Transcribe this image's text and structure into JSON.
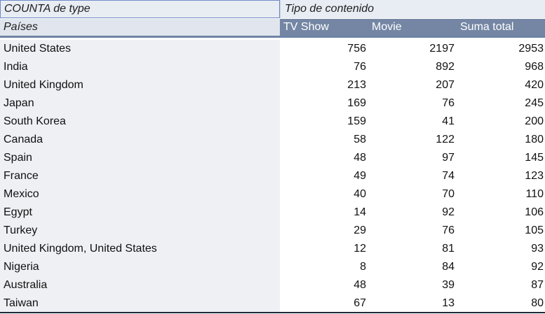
{
  "header": {
    "value_label": "COUNTA de type",
    "column_group_label": "Tipo de contenido",
    "row_label": "Países",
    "columns": [
      "TV Show",
      "Movie",
      "Suma total"
    ]
  },
  "rows": [
    {
      "country": "United States",
      "tv_show": "756",
      "movie": "2197",
      "total": "2953"
    },
    {
      "country": "India",
      "tv_show": "76",
      "movie": "892",
      "total": "968"
    },
    {
      "country": "United Kingdom",
      "tv_show": "213",
      "movie": "207",
      "total": "420"
    },
    {
      "country": "Japan",
      "tv_show": "169",
      "movie": "76",
      "total": "245"
    },
    {
      "country": "South Korea",
      "tv_show": "159",
      "movie": "41",
      "total": "200"
    },
    {
      "country": "Canada",
      "tv_show": "58",
      "movie": "122",
      "total": "180"
    },
    {
      "country": "Spain",
      "tv_show": "48",
      "movie": "97",
      "total": "145"
    },
    {
      "country": "France",
      "tv_show": "49",
      "movie": "74",
      "total": "123"
    },
    {
      "country": "Mexico",
      "tv_show": "40",
      "movie": "70",
      "total": "110"
    },
    {
      "country": "Egypt",
      "tv_show": "14",
      "movie": "92",
      "total": "106"
    },
    {
      "country": "Turkey",
      "tv_show": "29",
      "movie": "76",
      "total": "105"
    },
    {
      "country": "United Kingdom, United States",
      "tv_show": "12",
      "movie": "81",
      "total": "93"
    },
    {
      "country": "Nigeria",
      "tv_show": "8",
      "movie": "84",
      "total": "92"
    },
    {
      "country": "Australia",
      "tv_show": "48",
      "movie": "39",
      "total": "87"
    },
    {
      "country": "Taiwan",
      "tv_show": "67",
      "movie": "13",
      "total": "80"
    }
  ]
}
